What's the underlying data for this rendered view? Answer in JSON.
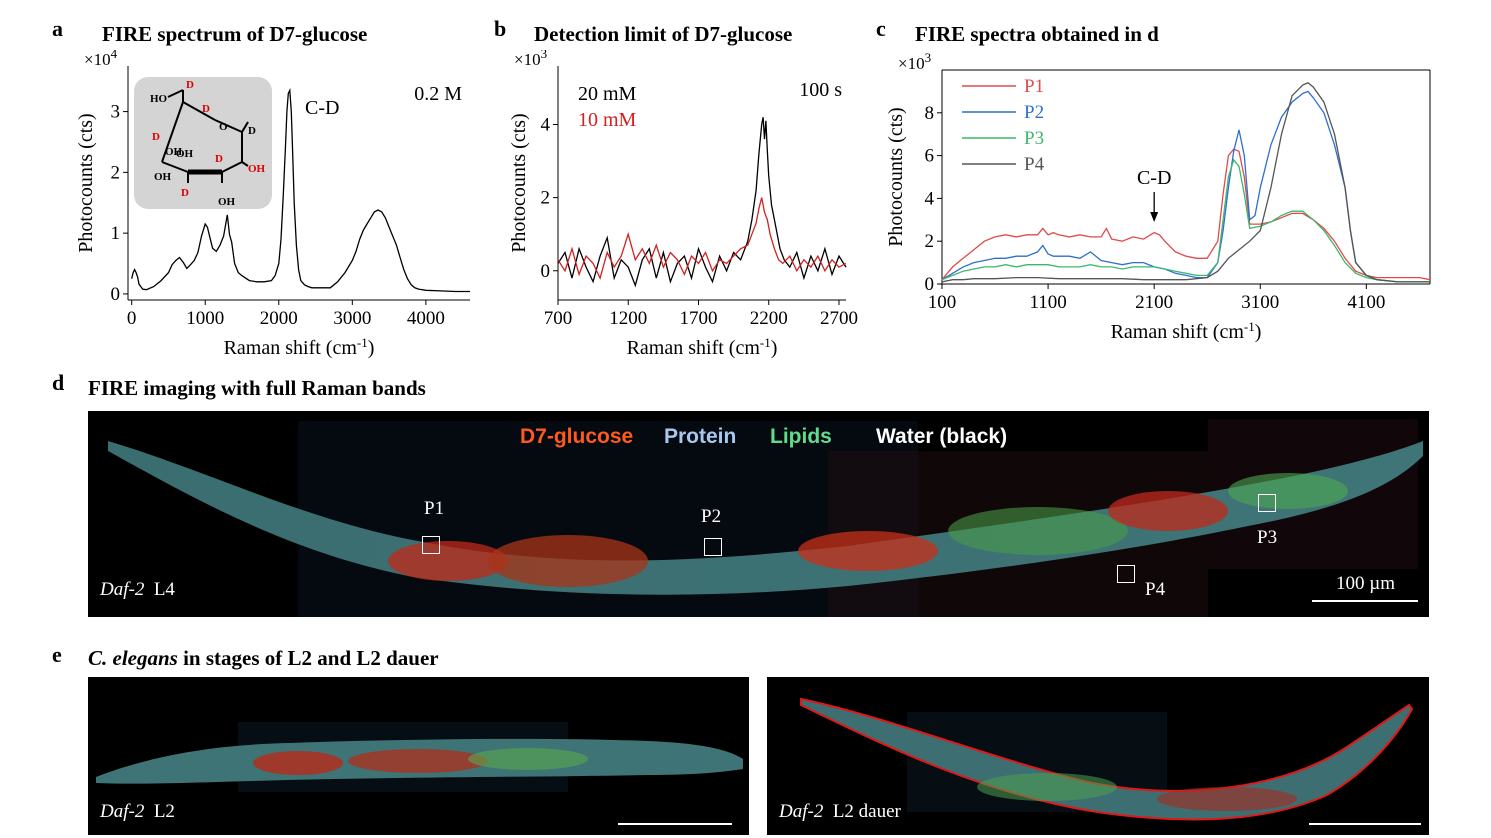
{
  "panels": {
    "a": {
      "label": "a",
      "title": "FIRE spectrum of D7-glucose"
    },
    "b": {
      "label": "b",
      "title": "Detection limit of D7-glucose"
    },
    "c": {
      "label": "c",
      "title": "FIRE spectra obtained in d"
    },
    "d": {
      "label": "d",
      "title": "FIRE imaging with full Raman bands"
    },
    "e": {
      "label": "e",
      "title_italic": "C. elegans",
      "title_rest": " in stages of L2 and L2 dauer"
    }
  },
  "chart_data": [
    {
      "panel": "a",
      "type": "line",
      "xlabel": "Raman shift (cm-1)",
      "ylabel": "Photocounts (cts)",
      "y_multiplier": "×10^4",
      "xlim": [
        -50,
        4600
      ],
      "ylim": [
        -0.1,
        3.75
      ],
      "xticks": [
        "0",
        "1000",
        "2000",
        "3000",
        "4000"
      ],
      "yticks": [
        "0",
        "1",
        "2",
        "3"
      ],
      "annotations": [
        "0.2 M",
        "C-D"
      ],
      "molecule_labels": [
        "HO",
        "D",
        "D",
        "O",
        "D",
        "D",
        "OH",
        "OH",
        "D",
        "OH",
        "OH",
        "D",
        "OH"
      ],
      "series": [
        {
          "name": "D7-glucose",
          "color": "#000000",
          "x": [
            0,
            20,
            40,
            60,
            80,
            100,
            150,
            200,
            300,
            400,
            500,
            550,
            600,
            650,
            700,
            750,
            800,
            850,
            900,
            950,
            1000,
            1030,
            1060,
            1100,
            1150,
            1200,
            1250,
            1300,
            1330,
            1360,
            1400,
            1450,
            1500,
            1600,
            1700,
            1800,
            1900,
            1950,
            2000,
            2030,
            2060,
            2090,
            2110,
            2130,
            2150,
            2170,
            2190,
            2210,
            2240,
            2270,
            2300,
            2350,
            2400,
            2450,
            2500,
            2600,
            2700,
            2800,
            2900,
            3000,
            3050,
            3100,
            3150,
            3200,
            3250,
            3300,
            3350,
            3400,
            3450,
            3500,
            3550,
            3600,
            3650,
            3700,
            3750,
            3800,
            3850,
            3900,
            4000,
            4200,
            4400,
            4600
          ],
          "y": [
            0.25,
            0.35,
            0.4,
            0.35,
            0.28,
            0.16,
            0.08,
            0.07,
            0.12,
            0.22,
            0.35,
            0.48,
            0.55,
            0.6,
            0.52,
            0.42,
            0.48,
            0.55,
            0.68,
            0.95,
            1.15,
            1.1,
            0.95,
            0.75,
            0.7,
            0.8,
            0.95,
            1.3,
            0.98,
            0.85,
            0.5,
            0.35,
            0.3,
            0.22,
            0.2,
            0.2,
            0.22,
            0.3,
            0.5,
            0.9,
            1.6,
            2.4,
            3.0,
            3.3,
            3.35,
            3.0,
            2.3,
            1.5,
            0.8,
            0.4,
            0.22,
            0.15,
            0.12,
            0.1,
            0.1,
            0.1,
            0.1,
            0.2,
            0.35,
            0.55,
            0.7,
            0.9,
            1.05,
            1.15,
            1.25,
            1.35,
            1.38,
            1.35,
            1.25,
            1.1,
            0.95,
            0.8,
            0.6,
            0.4,
            0.25,
            0.15,
            0.1,
            0.08,
            0.06,
            0.05,
            0.04,
            0.04
          ]
        }
      ]
    },
    {
      "panel": "b",
      "type": "line",
      "xlabel": "Raman shift (cm-1)",
      "ylabel": "Photocounts (cts)",
      "y_multiplier": "×10^3",
      "xlim": [
        700,
        2750
      ],
      "ylim": [
        -0.8,
        5.6
      ],
      "xticks": [
        "700",
        "1200",
        "1700",
        "2200",
        "2700"
      ],
      "yticks": [
        "0",
        "2",
        "4"
      ],
      "annotations": [
        "100 s"
      ],
      "series": [
        {
          "name": "20 mM",
          "color": "#000000",
          "x": [
            700,
            750,
            800,
            850,
            900,
            950,
            1000,
            1050,
            1100,
            1150,
            1200,
            1250,
            1300,
            1350,
            1400,
            1450,
            1500,
            1550,
            1600,
            1650,
            1700,
            1750,
            1800,
            1850,
            1900,
            1950,
            2000,
            2050,
            2080,
            2110,
            2130,
            2150,
            2160,
            2170,
            2180,
            2190,
            2200,
            2220,
            2250,
            2280,
            2310,
            2350,
            2400,
            2450,
            2500,
            2550,
            2600,
            2650,
            2700,
            2750
          ],
          "y": [
            0.2,
            0.5,
            -0.2,
            0.6,
            0.1,
            -0.3,
            0.4,
            0.9,
            -0.2,
            0.3,
            0.1,
            -0.4,
            0.3,
            0.6,
            -0.2,
            0.5,
            -0.3,
            0.2,
            0.4,
            -0.2,
            0.6,
            0.1,
            -0.3,
            0.4,
            0.0,
            0.5,
            0.3,
            0.8,
            1.4,
            2.2,
            3.2,
            4.0,
            4.2,
            3.6,
            4.1,
            3.3,
            2.6,
            1.8,
            1.2,
            0.6,
            0.3,
            0.1,
            0.5,
            -0.2,
            0.4,
            0.0,
            0.6,
            -0.1,
            0.4,
            0.1
          ]
        },
        {
          "name": "10 mM",
          "color": "#d42020",
          "x": [
            700,
            750,
            800,
            850,
            900,
            950,
            1000,
            1050,
            1100,
            1150,
            1200,
            1250,
            1300,
            1350,
            1400,
            1450,
            1500,
            1550,
            1600,
            1650,
            1700,
            1750,
            1800,
            1850,
            1900,
            1950,
            2000,
            2050,
            2080,
            2110,
            2130,
            2150,
            2170,
            2190,
            2210,
            2240,
            2270,
            2300,
            2350,
            2400,
            2450,
            2500,
            2550,
            2600,
            2650,
            2700,
            2750
          ],
          "y": [
            0.3,
            0.0,
            0.6,
            -0.1,
            0.4,
            0.2,
            -0.2,
            0.5,
            0.1,
            0.4,
            1.0,
            0.3,
            0.6,
            0.2,
            0.7,
            0.1,
            0.5,
            0.3,
            -0.1,
            0.4,
            0.2,
            0.5,
            0.0,
            0.3,
            0.2,
            0.4,
            0.6,
            0.7,
            1.0,
            1.3,
            1.7,
            2.0,
            1.6,
            1.4,
            1.0,
            0.6,
            0.3,
            0.2,
            0.4,
            0.0,
            0.3,
            0.1,
            0.4,
            0.0,
            0.3,
            0.1,
            0.2
          ]
        }
      ]
    },
    {
      "panel": "c",
      "type": "line",
      "xlabel": "Raman shift (cm-1)",
      "ylabel": "Photocounts (cts)",
      "y_multiplier": "×10^3",
      "xlim": [
        100,
        4700
      ],
      "ylim": [
        0,
        10
      ],
      "xticks": [
        "100",
        "1100",
        "2100",
        "3100",
        "4100"
      ],
      "yticks": [
        "0",
        "2",
        "4",
        "6",
        "8"
      ],
      "annotations": [
        "C-D"
      ],
      "series": [
        {
          "name": "P1",
          "color": "#e24a4a",
          "x": [
            100,
            200,
            300,
            400,
            500,
            600,
            700,
            800,
            900,
            1000,
            1050,
            1100,
            1150,
            1200,
            1300,
            1400,
            1500,
            1600,
            1650,
            1700,
            1800,
            1900,
            2000,
            2100,
            2150,
            2200,
            2300,
            2400,
            2500,
            2600,
            2700,
            2750,
            2800,
            2850,
            2900,
            2950,
            3000,
            3100,
            3200,
            3300,
            3400,
            3500,
            3600,
            3700,
            3800,
            3900,
            4000,
            4100,
            4200,
            4400,
            4600,
            4700
          ],
          "y": [
            0.2,
            0.8,
            1.2,
            1.6,
            2.0,
            2.2,
            2.3,
            2.2,
            2.3,
            2.3,
            2.6,
            2.3,
            2.4,
            2.3,
            2.2,
            2.3,
            2.2,
            2.2,
            2.6,
            2.1,
            2.0,
            2.2,
            2.1,
            2.4,
            2.3,
            2.0,
            1.5,
            1.3,
            1.2,
            1.2,
            2.0,
            4.2,
            6.0,
            6.3,
            6.2,
            5.0,
            2.8,
            2.8,
            2.9,
            3.1,
            3.3,
            3.3,
            3.0,
            2.6,
            2.0,
            1.2,
            0.6,
            0.4,
            0.3,
            0.3,
            0.3,
            0.2
          ]
        },
        {
          "name": "P2",
          "color": "#2f6fd0",
          "x": [
            100,
            200,
            300,
            400,
            500,
            600,
            700,
            800,
            900,
            1000,
            1050,
            1100,
            1150,
            1200,
            1300,
            1400,
            1500,
            1600,
            1700,
            1800,
            1900,
            2000,
            2100,
            2200,
            2300,
            2400,
            2500,
            2600,
            2700,
            2750,
            2800,
            2850,
            2900,
            2950,
            3000,
            3050,
            3100,
            3200,
            3300,
            3400,
            3500,
            3550,
            3600,
            3700,
            3800,
            3900,
            3950,
            4000,
            4100,
            4200,
            4400,
            4600,
            4700
          ],
          "y": [
            0.2,
            0.5,
            0.8,
            1.0,
            1.1,
            1.2,
            1.2,
            1.3,
            1.3,
            1.5,
            1.8,
            1.4,
            1.3,
            1.3,
            1.3,
            1.2,
            1.5,
            1.1,
            1.0,
            0.9,
            1.0,
            1.0,
            0.8,
            0.7,
            0.5,
            0.4,
            0.3,
            0.3,
            1.0,
            2.5,
            4.5,
            6.2,
            7.2,
            6.0,
            3.0,
            3.2,
            4.5,
            6.5,
            7.8,
            8.5,
            8.9,
            9.0,
            8.7,
            8.0,
            6.5,
            4.5,
            2.5,
            1.0,
            0.4,
            0.2,
            0.1,
            0.1,
            0.1
          ]
        },
        {
          "name": "P3",
          "color": "#3cb86c",
          "x": [
            100,
            200,
            300,
            400,
            500,
            600,
            700,
            800,
            900,
            1000,
            1100,
            1200,
            1300,
            1400,
            1500,
            1600,
            1700,
            1800,
            1900,
            2000,
            2100,
            2200,
            2300,
            2400,
            2500,
            2600,
            2700,
            2750,
            2800,
            2850,
            2900,
            2950,
            3000,
            3100,
            3200,
            3300,
            3400,
            3500,
            3600,
            3700,
            3800,
            3900,
            4000,
            4100,
            4200,
            4400,
            4600,
            4700
          ],
          "y": [
            0.2,
            0.4,
            0.6,
            0.7,
            0.8,
            0.8,
            0.9,
            0.8,
            0.9,
            0.9,
            0.9,
            0.8,
            0.8,
            0.8,
            0.9,
            0.8,
            0.8,
            0.7,
            0.8,
            0.8,
            0.8,
            0.7,
            0.6,
            0.5,
            0.4,
            0.4,
            1.0,
            3.0,
            5.0,
            5.8,
            5.5,
            4.2,
            2.6,
            2.7,
            2.9,
            3.2,
            3.4,
            3.4,
            3.0,
            2.5,
            1.8,
            1.0,
            0.5,
            0.3,
            0.2,
            0.1,
            0.1,
            0.1
          ]
        },
        {
          "name": "P4",
          "color": "#555555",
          "x": [
            100,
            200,
            300,
            400,
            500,
            600,
            800,
            1000,
            1200,
            1400,
            1600,
            1800,
            2000,
            2200,
            2400,
            2600,
            2700,
            2800,
            2900,
            3000,
            3100,
            3200,
            3300,
            3400,
            3500,
            3550,
            3600,
            3700,
            3800,
            3900,
            3950,
            4000,
            4100,
            4200,
            4400,
            4600,
            4700
          ],
          "y": [
            0.1,
            0.2,
            0.2,
            0.25,
            0.25,
            0.25,
            0.3,
            0.3,
            0.25,
            0.25,
            0.25,
            0.25,
            0.2,
            0.2,
            0.2,
            0.3,
            0.6,
            1.2,
            1.6,
            2.0,
            2.5,
            4.5,
            7.0,
            8.8,
            9.3,
            9.4,
            9.2,
            8.5,
            7.0,
            4.5,
            2.5,
            1.0,
            0.4,
            0.2,
            0.1,
            0.1,
            0.1
          ]
        }
      ]
    }
  ],
  "panel_d": {
    "legend": [
      "D7-glucose",
      "Protein",
      "Lipids",
      "Water (black)"
    ],
    "legend_colors": [
      "#ff5a1e",
      "#a8c8f0",
      "#5fdc8c",
      "#ffffff"
    ],
    "rois": [
      "P1",
      "P2",
      "P3",
      "P4"
    ],
    "caption_italic": "Daf-2",
    "caption_stage": "L4",
    "scale_label": "100 µm"
  },
  "panel_e": {
    "left": {
      "caption_italic": "Daf-2",
      "caption_stage": "L2"
    },
    "right": {
      "caption_italic": "Daf-2",
      "caption_stage": "L2 dauer"
    }
  }
}
